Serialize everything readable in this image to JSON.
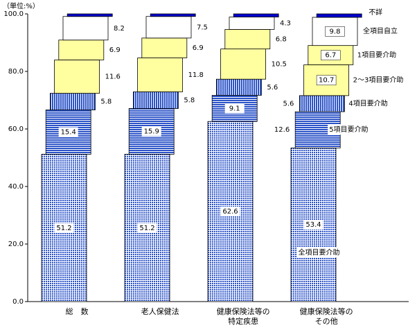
{
  "chart_data": {
    "type": "bar",
    "stacked": true,
    "unit_label": "（単位:%）",
    "categories": [
      "総　数",
      "老人保健法",
      "健康保険法等の\n特定疾患",
      "健康保険法等の\nその他"
    ],
    "series": [
      {
        "name": "全項目要介助",
        "color": "#2a52c8",
        "pattern": "grid",
        "values": [
          51.2,
          51.2,
          62.6,
          53.4
        ]
      },
      {
        "name": "5項目要介助",
        "color": "#2a52c8",
        "pattern": "hstripe",
        "values": [
          15.4,
          15.9,
          9.1,
          12.6
        ]
      },
      {
        "name": "4項目要介助",
        "color": "#2a52c8",
        "pattern": "vstripe",
        "values": [
          5.8,
          5.8,
          5.6,
          5.6
        ]
      },
      {
        "name": "2～3項目要介助",
        "color": "#ffffa0",
        "pattern": null,
        "values": [
          11.6,
          11.8,
          10.5,
          10.7
        ]
      },
      {
        "name": "1項目要介助",
        "color": "#ffffa0",
        "pattern": null,
        "values": [
          6.9,
          6.9,
          6.8,
          6.7
        ]
      },
      {
        "name": "全項目自立",
        "color": "#ffffff",
        "pattern": null,
        "values": [
          8.2,
          7.5,
          4.3,
          9.8
        ]
      },
      {
        "name": "不詳",
        "color": "#0000cc",
        "pattern": null,
        "values": [
          0.9,
          0.9,
          1.1,
          1.2
        ]
      }
    ],
    "ylim": [
      0,
      100
    ],
    "yticks": [
      {
        "value": 0,
        "label": "0.0"
      },
      {
        "value": 20,
        "label": "20.0"
      },
      {
        "value": 40,
        "label": "40.0"
      },
      {
        "value": 60,
        "label": "60.0"
      },
      {
        "value": 80,
        "label": "80.0"
      },
      {
        "value": 100,
        "label": "100.0"
      }
    ]
  }
}
